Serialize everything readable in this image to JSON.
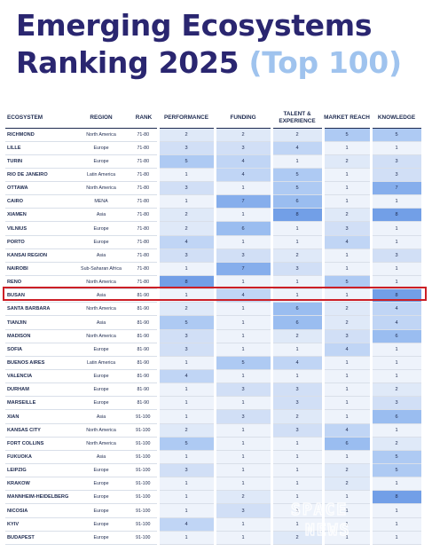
{
  "title": {
    "main_line1": "Emerging Ecosystems",
    "main_line2": "Ranking 2025",
    "accent": "(Top 100)"
  },
  "columns": [
    "ECOSYSTEM",
    "REGION",
    "RANK",
    "PERFORMANCE",
    "FUNDING",
    "TALENT & EXPERIENCE",
    "MARKET REACH",
    "KNOWLEDGE"
  ],
  "rows": [
    {
      "ecosystem": "RICHMOND",
      "region": "North America",
      "rank": "71-80",
      "values": [
        2,
        2,
        2,
        5,
        5
      ]
    },
    {
      "ecosystem": "LILLE",
      "region": "Europe",
      "rank": "71-80",
      "values": [
        3,
        3,
        4,
        1,
        1
      ]
    },
    {
      "ecosystem": "TURIN",
      "region": "Europe",
      "rank": "71-80",
      "values": [
        5,
        4,
        1,
        2,
        3
      ]
    },
    {
      "ecosystem": "RIO DE JANEIRO",
      "region": "Latin America",
      "rank": "71-80",
      "values": [
        1,
        4,
        5,
        1,
        3
      ]
    },
    {
      "ecosystem": "OTTAWA",
      "region": "North America",
      "rank": "71-80",
      "values": [
        3,
        1,
        5,
        1,
        7
      ]
    },
    {
      "ecosystem": "CAIRO",
      "region": "MENA",
      "rank": "71-80",
      "values": [
        1,
        7,
        6,
        1,
        1
      ]
    },
    {
      "ecosystem": "XIAMEN",
      "region": "Asia",
      "rank": "71-80",
      "values": [
        2,
        1,
        8,
        2,
        8
      ]
    },
    {
      "ecosystem": "VILNIUS",
      "region": "Europe",
      "rank": "71-80",
      "values": [
        2,
        6,
        1,
        3,
        1
      ]
    },
    {
      "ecosystem": "PORTO",
      "region": "Europe",
      "rank": "71-80",
      "values": [
        4,
        1,
        1,
        4,
        1
      ]
    },
    {
      "ecosystem": "KANSAI REGION",
      "region": "Asia",
      "rank": "71-80",
      "values": [
        3,
        3,
        2,
        1,
        3
      ]
    },
    {
      "ecosystem": "NAIROBI",
      "region": "Sub-Saharan Africa",
      "rank": "71-80",
      "values": [
        1,
        7,
        3,
        1,
        1
      ]
    },
    {
      "ecosystem": "RENO",
      "region": "North America",
      "rank": "71-80",
      "values": [
        8,
        1,
        1,
        5,
        1
      ]
    },
    {
      "ecosystem": "BUSAN",
      "region": "Asia",
      "rank": "81-90",
      "values": [
        1,
        4,
        1,
        1,
        8
      ]
    },
    {
      "ecosystem": "SANTA BARBARA",
      "region": "North America",
      "rank": "81-90",
      "values": [
        2,
        1,
        6,
        2,
        4
      ]
    },
    {
      "ecosystem": "TIANJIN",
      "region": "Asia",
      "rank": "81-90",
      "values": [
        5,
        1,
        6,
        2,
        4
      ]
    },
    {
      "ecosystem": "MADISON",
      "region": "North America",
      "rank": "81-90",
      "values": [
        3,
        1,
        2,
        3,
        6
      ]
    },
    {
      "ecosystem": "SOFIA",
      "region": "Europe",
      "rank": "81-90",
      "values": [
        3,
        1,
        1,
        4,
        1
      ]
    },
    {
      "ecosystem": "BUENOS AIRES",
      "region": "Latin America",
      "rank": "81-90",
      "values": [
        1,
        5,
        4,
        1,
        1
      ]
    },
    {
      "ecosystem": "VALENCIA",
      "region": "Europe",
      "rank": "81-90",
      "values": [
        4,
        1,
        1,
        1,
        1
      ]
    },
    {
      "ecosystem": "DURHAM",
      "region": "Europe",
      "rank": "81-90",
      "values": [
        1,
        3,
        3,
        1,
        2
      ]
    },
    {
      "ecosystem": "MARSEILLE",
      "region": "Europe",
      "rank": "81-90",
      "values": [
        1,
        1,
        3,
        1,
        3
      ]
    },
    {
      "ecosystem": "XIAN",
      "region": "Asia",
      "rank": "91-100",
      "values": [
        1,
        3,
        2,
        1,
        6
      ]
    },
    {
      "ecosystem": "KANSAS CITY",
      "region": "North America",
      "rank": "91-100",
      "values": [
        2,
        1,
        3,
        4,
        1
      ]
    },
    {
      "ecosystem": "FORT COLLINS",
      "region": "North America",
      "rank": "91-100",
      "values": [
        5,
        1,
        1,
        6,
        2
      ]
    },
    {
      "ecosystem": "FUKUOKA",
      "region": "Asia",
      "rank": "91-100",
      "values": [
        1,
        1,
        1,
        1,
        5
      ]
    },
    {
      "ecosystem": "LEIPZIG",
      "region": "Europe",
      "rank": "91-100",
      "values": [
        3,
        1,
        1,
        2,
        5
      ]
    },
    {
      "ecosystem": "KRAKOW",
      "region": "Europe",
      "rank": "91-100",
      "values": [
        1,
        1,
        1,
        2,
        1
      ]
    },
    {
      "ecosystem": "MANNHEIM-HEIDELBERG",
      "region": "Europe",
      "rank": "91-100",
      "values": [
        1,
        2,
        1,
        1,
        8
      ]
    },
    {
      "ecosystem": "NICOSIA",
      "region": "Europe",
      "rank": "91-100",
      "values": [
        1,
        3,
        1,
        1,
        1
      ]
    },
    {
      "ecosystem": "KYIV",
      "region": "Europe",
      "rank": "91-100",
      "values": [
        4,
        1,
        1,
        1,
        1
      ]
    },
    {
      "ecosystem": "BUDAPEST",
      "region": "Europe",
      "rank": "91-100",
      "values": [
        1,
        1,
        2,
        1,
        1
      ]
    }
  ],
  "highlighted_ecosystem": "BUSAN",
  "watermark": {
    "line1": "SPACE",
    "line2": "NEWS"
  },
  "colors": {
    "title": "#2a2670",
    "accent": "#9fc3ee",
    "highlight_border": "#cc1f26",
    "level_scale": [
      "#eef3fb",
      "#dfe9f8",
      "#d1dff6",
      "#c0d5f5",
      "#aecaf3",
      "#9abdf0",
      "#86aeec",
      "#729fe7"
    ]
  }
}
